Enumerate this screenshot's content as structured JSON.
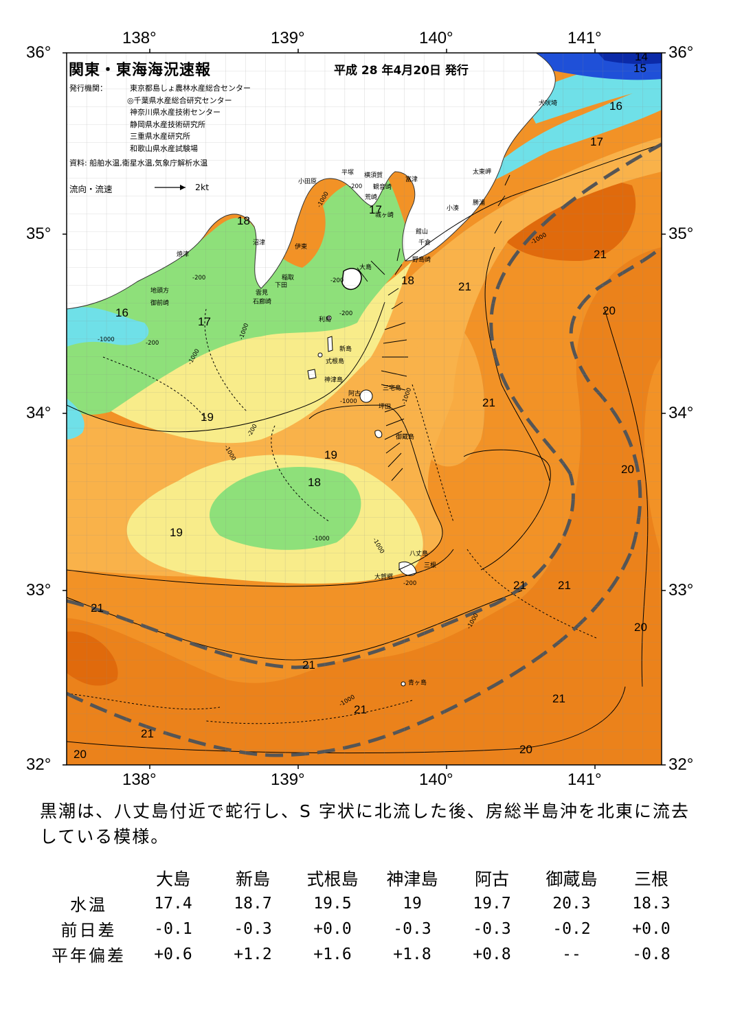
{
  "header": {
    "title": "関東・東海海況速報",
    "date": "平成 28 年4月20日 発行"
  },
  "institutions": {
    "label": "発行機関：",
    "list": [
      "東京都島しょ農林水産総合センター",
      "◎千葉県水産総合研究センター",
      "神奈川県水産技術センター",
      "静岡県水産技術研究所",
      "三重県水産研究所",
      "和歌山県水産試験場"
    ]
  },
  "source": "資料: 船舶水温,衛星水温,気象庁解析水温",
  "flow_legend": {
    "label": "流向・流速",
    "unit": "2kt"
  },
  "axes": {
    "lon_top": [
      "138°",
      "139°",
      "140°",
      "141°"
    ],
    "lon_bottom": [
      "138°",
      "139°",
      "140°",
      "141°"
    ],
    "lat_left": [
      "36°",
      "35°",
      "34°",
      "33°",
      "32°"
    ],
    "lat_right": [
      "36°",
      "35°",
      "34°",
      "33°",
      "32°"
    ]
  },
  "isotherm_labels": [
    "14",
    "15",
    "16",
    "17",
    "18",
    "17",
    "18",
    "16",
    "17",
    "19",
    "18",
    "19",
    "19",
    "21",
    "21",
    "21",
    "20",
    "20",
    "21",
    "21",
    "20",
    "21",
    "21",
    "21",
    "21",
    "20",
    "20"
  ],
  "place_names": [
    "犬吠埼",
    "太東岬",
    "勝浦",
    "小湊",
    "富津",
    "横須賀",
    "観音崎",
    "平塚",
    "荒崎",
    "城ヶ崎",
    "小田原",
    "館山",
    "千倉",
    "野島崎",
    "沼津",
    "伊東",
    "焼津",
    "稲取",
    "下田",
    "雲見",
    "石廊崎",
    "地頭方",
    "御前崎",
    "大島",
    "利島",
    "新島",
    "式根島",
    "神津島",
    "阿古",
    "三宅島",
    "坪田",
    "御蔵島",
    "八丈島",
    "三根",
    "大賀郷",
    "青ヶ島"
  ],
  "depth_labels": [
    "-200",
    "-1000",
    "-200",
    "-200",
    "-1000",
    "-200",
    "-1000",
    "-200",
    "-1000",
    "-1000",
    "-1000",
    "-200",
    "-1000",
    "-1000",
    "-1000",
    "-200",
    "-1000",
    "-1000",
    "-1000"
  ],
  "summary": "黒潮は、八丈島付近で蛇行し、S 字状に北流した後、房総半島沖を北東に流去している模様。",
  "table": {
    "columns": [
      "大島",
      "新島",
      "式根島",
      "神津島",
      "阿古",
      "御蔵島",
      "三根"
    ],
    "rows": [
      {
        "label": "水温",
        "values": [
          "17.4",
          "18.7",
          "19.5",
          "19",
          "19.7",
          "20.3",
          "18.3"
        ]
      },
      {
        "label": "前日差",
        "values": [
          "-0.1",
          "-0.3",
          "+0.0",
          "-0.3",
          "-0.3",
          "-0.2",
          "+0.0"
        ]
      },
      {
        "label": "平年偏差",
        "values": [
          "+0.6",
          "+1.2",
          "+1.6",
          "+1.8",
          "+0.8",
          "--",
          "-0.8"
        ]
      }
    ]
  },
  "colors": {
    "cold_blue": "#1f50d8",
    "cyan": "#6fe0e8",
    "green": "#8ee07a",
    "yellow": "#f8ec8a",
    "orange_light": "#f9b24a",
    "orange": "#f29226",
    "orange_dark": "#e57512",
    "kuroshio_axis": "#555555"
  }
}
